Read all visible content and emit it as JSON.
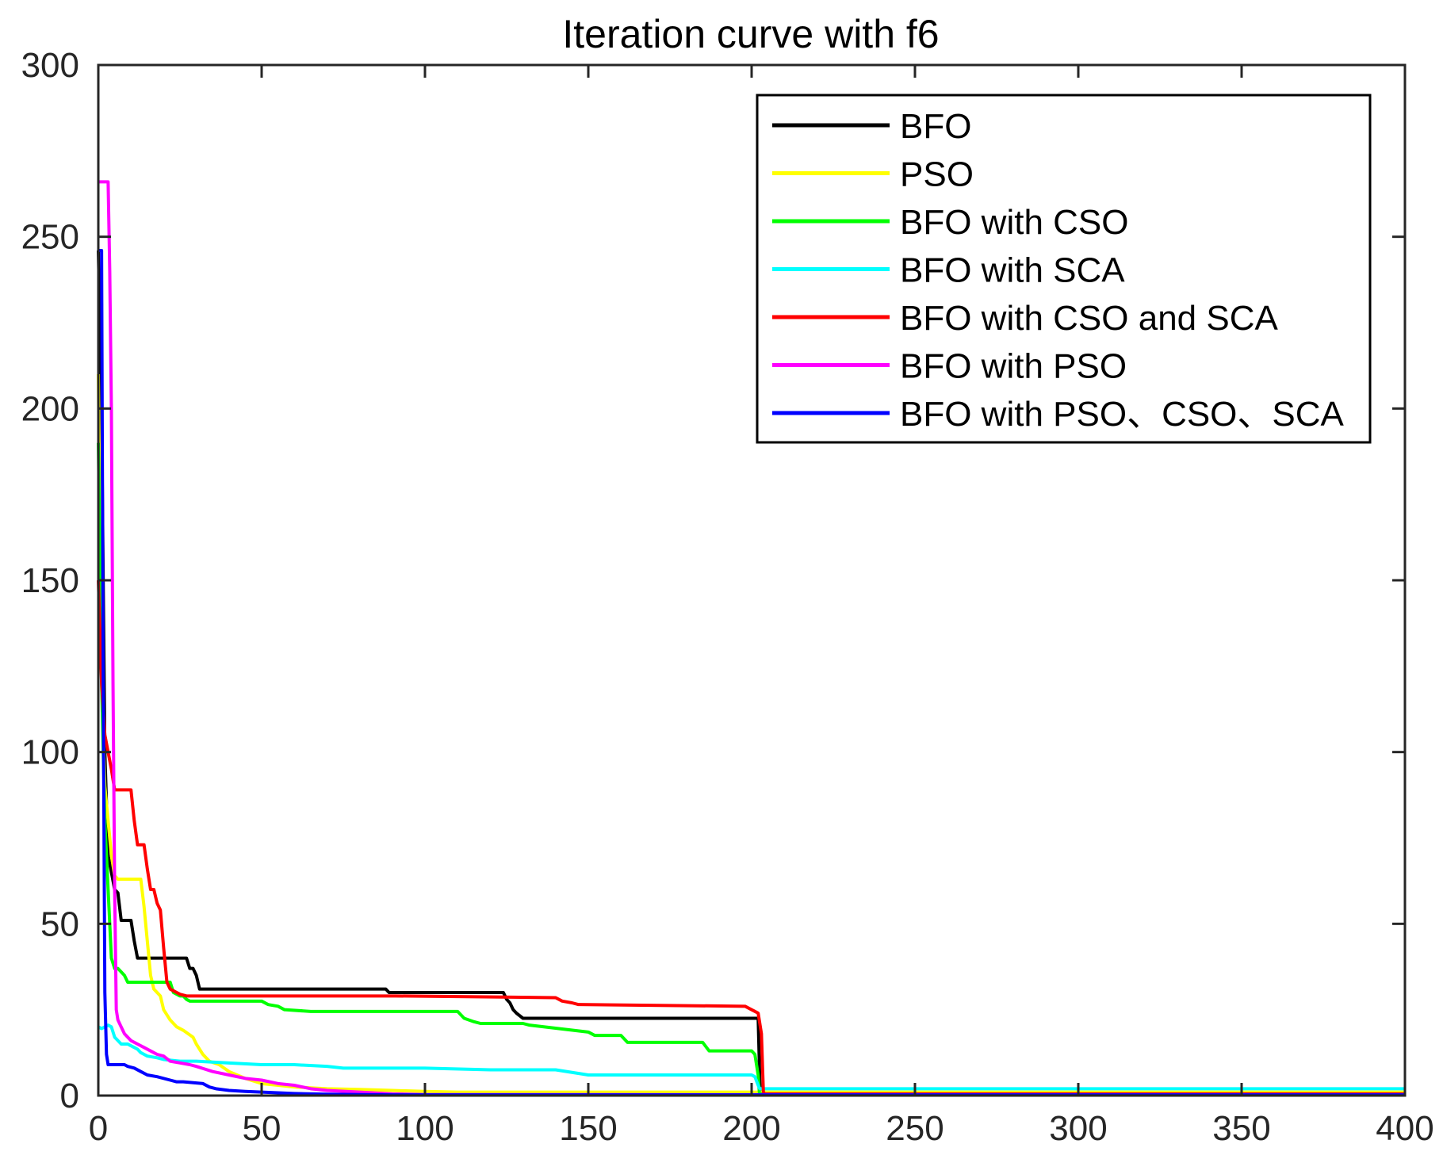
{
  "chart_data": {
    "type": "line",
    "title": "Iteration curve with f6",
    "xlabel": "",
    "ylabel": "",
    "xlim": [
      0,
      400
    ],
    "ylim": [
      0,
      300
    ],
    "xticks": [
      0,
      50,
      100,
      150,
      200,
      250,
      300,
      350,
      400
    ],
    "yticks": [
      0,
      50,
      100,
      150,
      200,
      250,
      300
    ],
    "xtick_labels": [
      "0",
      "50",
      "100",
      "150",
      "200",
      "250",
      "300",
      "350",
      "400"
    ],
    "ytick_labels": [
      "0",
      "50",
      "100",
      "150",
      "200",
      "250",
      "300"
    ],
    "grid": false,
    "legend_position": "top-right",
    "series": [
      {
        "name": "BFO",
        "color": "#000000",
        "x": [
          0,
          1,
          2,
          3,
          5,
          6,
          7,
          10,
          11,
          12,
          13,
          27,
          28,
          29,
          30,
          31,
          88,
          89,
          124,
          125,
          126,
          127,
          128,
          130,
          131,
          132,
          201,
          202,
          202.6,
          203,
          400
        ],
        "y": [
          246,
          200,
          100,
          70,
          60,
          59,
          51,
          51,
          45,
          40,
          40,
          40,
          37,
          37,
          35,
          31,
          31,
          30,
          30,
          28,
          27,
          25,
          24,
          22.5,
          22.5,
          22.5,
          22.5,
          22.5,
          0.5,
          0.5,
          0.5
        ]
      },
      {
        "name": "PSO",
        "color": "#ffff00",
        "x": [
          0,
          1,
          2,
          3,
          4,
          5,
          6,
          13,
          14,
          15,
          16,
          17,
          18,
          19,
          20,
          22,
          24,
          26,
          29,
          30,
          32,
          34,
          37,
          40,
          45,
          50,
          55,
          60,
          70,
          80,
          90,
          100,
          110,
          400
        ],
        "y": [
          210,
          120,
          90,
          80,
          70,
          64,
          63,
          63,
          55,
          45,
          35,
          31,
          30,
          29,
          25,
          22,
          20,
          19,
          17,
          15,
          12,
          10,
          9,
          7,
          5,
          3.5,
          3,
          2.5,
          2,
          1.8,
          1.5,
          1.2,
          1,
          1
        ]
      },
      {
        "name": "BFO with CSO",
        "color": "#00ff00",
        "x": [
          0,
          1,
          2,
          3,
          4,
          5,
          6,
          8,
          9,
          22,
          23,
          25,
          26,
          27,
          28,
          50,
          52,
          55,
          57,
          65,
          70,
          110,
          112,
          115,
          117,
          130,
          132,
          150,
          152,
          160,
          162,
          185,
          187,
          200,
          201,
          202,
          202.4,
          400
        ],
        "y": [
          190,
          120,
          80,
          60,
          40,
          37,
          37,
          35,
          33,
          33,
          30,
          29,
          29,
          28,
          27.5,
          27.5,
          26.5,
          26,
          25,
          24.5,
          24.5,
          24.5,
          22.5,
          21.5,
          21,
          21,
          20.5,
          18.5,
          17.5,
          17.5,
          15.5,
          15.5,
          13,
          13,
          12,
          6,
          0.5,
          0.5
        ]
      },
      {
        "name": "BFO with SCA",
        "color": "#00ffff",
        "x": [
          0,
          1,
          2,
          3,
          4,
          5,
          6,
          7,
          9,
          10,
          11,
          12,
          13,
          14,
          15,
          18,
          20,
          25,
          30,
          40,
          50,
          60,
          70,
          75,
          80,
          100,
          120,
          140,
          150,
          152,
          160,
          180,
          190,
          200,
          201,
          202,
          202.5,
          400
        ],
        "y": [
          20,
          19.5,
          20,
          20.5,
          20,
          17,
          16,
          15,
          15,
          14.5,
          14,
          13.5,
          12.5,
          12,
          11.5,
          11,
          10.5,
          10,
          10,
          9.5,
          9,
          9,
          8.5,
          8,
          8,
          8,
          7.5,
          7.5,
          6,
          6,
          6,
          6,
          6,
          6,
          5.5,
          3,
          2,
          2
        ]
      },
      {
        "name": "BFO with CSO and SCA",
        "color": "#ff0000",
        "x": [
          0,
          1,
          2,
          3,
          4,
          5,
          10,
          11,
          12,
          14,
          15,
          16,
          17,
          18,
          19,
          20,
          21,
          22,
          23,
          24,
          25,
          27,
          28,
          90,
          91,
          140,
          142,
          145,
          147,
          198,
          200,
          201,
          202,
          203,
          203.6,
          204,
          400
        ],
        "y": [
          150,
          120,
          105,
          100,
          95,
          89,
          89,
          80,
          73,
          73,
          66,
          60,
          60,
          56,
          54,
          43,
          33,
          31,
          30.5,
          30,
          29.5,
          29,
          29,
          29,
          29,
          28.5,
          27.5,
          27,
          26.5,
          26,
          25,
          24.5,
          24,
          18,
          1,
          0.5,
          0.5
        ]
      },
      {
        "name": "BFO with PSO",
        "color": "#ff00ff",
        "x": [
          0,
          1,
          2,
          3,
          3.5,
          4,
          4.5,
          5,
          5.5,
          6,
          7,
          8,
          9,
          10,
          12,
          14,
          16,
          18,
          20,
          22,
          25,
          28,
          30,
          35,
          40,
          45,
          50,
          55,
          60,
          65,
          70,
          80,
          90,
          100,
          400
        ],
        "y": [
          266,
          266,
          266,
          266,
          240,
          200,
          120,
          60,
          25,
          22,
          20,
          18,
          17,
          16,
          15,
          14,
          13,
          12,
          11.5,
          10,
          9.5,
          9,
          8.5,
          7,
          6,
          5,
          4.5,
          3.5,
          3,
          2,
          1.5,
          1,
          0.5,
          0.3,
          0.2
        ]
      },
      {
        "name": "BFO with PSO、CSO、SCA",
        "color": "#0000ff",
        "x": [
          0,
          0.5,
          1,
          1.5,
          2,
          2.5,
          3,
          8,
          9,
          11,
          13,
          15,
          18,
          22,
          24,
          26,
          32,
          34,
          36,
          40,
          45,
          50,
          55,
          60,
          70,
          80,
          90,
          400
        ],
        "y": [
          246,
          246,
          246,
          120,
          30,
          12,
          9,
          9,
          8.5,
          8,
          7,
          6,
          5.5,
          4.5,
          4,
          4,
          3.5,
          2.5,
          2,
          1.5,
          1.2,
          1,
          0.8,
          0.6,
          0.4,
          0.3,
          0.2,
          0.2
        ]
      }
    ]
  }
}
